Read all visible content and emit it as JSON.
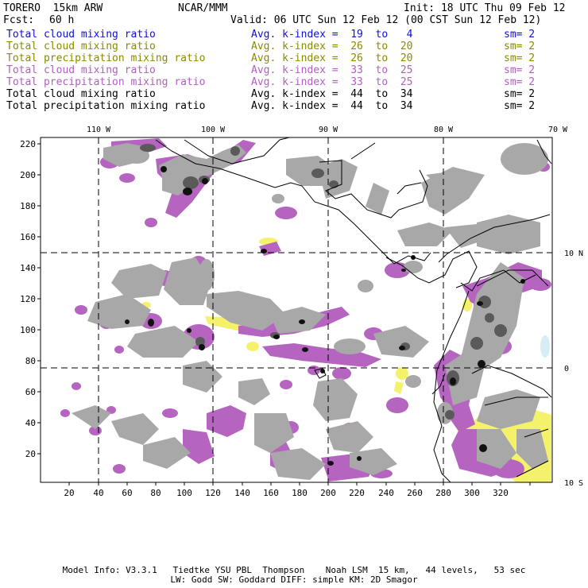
{
  "header": {
    "model": "TORERO  15km ARW",
    "org": "NCAR/MMM",
    "init": "Init: 18 UTC Thu 09 Feb 12",
    "fcst_label": "Fcst:",
    "fcst_value": "60 h",
    "valid": "Valid: 06 UTC Sun 12 Feb 12 (00 CST Sun 12 Feb 12)"
  },
  "legend": [
    {
      "name": "Total cloud mixing ratio",
      "kindex": "Avg. k-index =  19  to   4",
      "sm": "sm= 2",
      "color": "#1010d0"
    },
    {
      "name": "Total cloud mixing ratio",
      "kindex": "Avg. k-index =  26  to  20",
      "sm": "sm= 2",
      "color": "#8a8a00"
    },
    {
      "name": "Total precipitation mixing ratio",
      "kindex": "Avg. k-index =  26  to  20",
      "sm": "sm= 2",
      "color": "#8a8a00"
    },
    {
      "name": "Total cloud mixing ratio",
      "kindex": "Avg. k-index =  33  to  25",
      "sm": "sm= 2",
      "color": "#b060c0"
    },
    {
      "name": "Total precipitation mixing ratio",
      "kindex": "Avg. k-index =  33  to  25",
      "sm": "sm= 2",
      "color": "#b060c0"
    },
    {
      "name": "Total cloud mixing ratio",
      "kindex": "Avg. k-index =  44  to  34",
      "sm": "sm= 2",
      "color": "#000000"
    },
    {
      "name": "Total precipitation mixing ratio",
      "kindex": "Avg. k-index =  44  to  34",
      "sm": "sm= 2",
      "color": "#000000"
    }
  ],
  "map": {
    "lon_labels": [
      "110 W",
      "100 W",
      "90 W",
      "80 W",
      "70 W"
    ],
    "lat_labels": [
      "10 N",
      "0",
      "10 S"
    ],
    "x_ticks": [
      "20",
      "40",
      "60",
      "80",
      "100",
      "120",
      "140",
      "160",
      "180",
      "200",
      "220",
      "240",
      "260",
      "280",
      "300",
      "320"
    ],
    "y_ticks": [
      "220",
      "200",
      "180",
      "160",
      "140",
      "120",
      "100",
      "80",
      "60",
      "40",
      "20"
    ],
    "colors": {
      "yellow": "#f4f26a",
      "purple": "#b565c0",
      "gray": "#a8a8a8",
      "darkgray": "#5a5a5a",
      "black": "#111111",
      "lightblue": "#d6ecf6"
    }
  },
  "footer": {
    "line1": "Model Info: V3.3.1   Tiedtke YSU PBL  Thompson    Noah LSM  15 km,   44 levels,   53 sec",
    "line2": "LW: Godd SW: Goddard DIFF: simple KM: 2D Smagor"
  }
}
